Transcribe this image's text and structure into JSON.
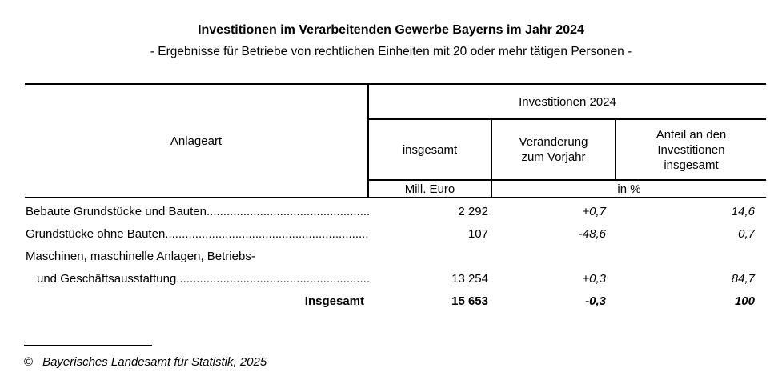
{
  "header": {
    "title": "Investitionen im Verarbeitenden Gewerbe Bayerns im Jahr 2024",
    "subtitle": "- Ergebnisse für Betriebe von rechtlichen Einheiten mit 20 oder mehr tätigen Personen -"
  },
  "table": {
    "stub_header": "Anlageart",
    "group_header": "Investitionen 2024",
    "columns": {
      "insgesamt": "insgesamt",
      "veraenderung": "Veränderung zum Vorjahr",
      "anteil": "Anteil an den Investitionen insgesamt"
    },
    "units": {
      "mill_euro": "Mill. Euro",
      "in_percent": "in %"
    },
    "leader_dots": "........................................................................................................",
    "rows": [
      {
        "label": "Bebaute Grundstücke und Bauten",
        "insgesamt": "2 292",
        "veraenderung": "+0,7",
        "anteil": "14,6"
      },
      {
        "label": "Grundstücke ohne Bauten",
        "insgesamt": "107",
        "veraenderung": "-48,6",
        "anteil": "0,7"
      },
      {
        "label_line1": "Maschinen, maschinelle Anlagen, Betriebs-",
        "label_line2": "und Geschäftsausstattung",
        "insgesamt": "13 254",
        "veraenderung": "+0,3",
        "anteil": "84,7"
      }
    ],
    "total_row": {
      "label": "Insgesamt",
      "insgesamt": "15 653",
      "veraenderung": "-0,3",
      "anteil": "100"
    }
  },
  "footer": {
    "copyright_symbol": "©",
    "copyright_text": "Bayerisches Landesamt für Statistik, 2025"
  }
}
